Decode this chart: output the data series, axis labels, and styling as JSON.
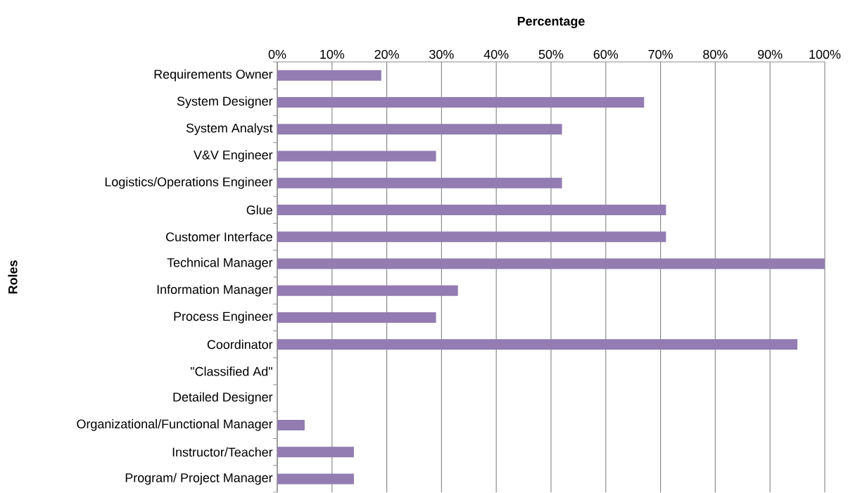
{
  "chart_data": {
    "type": "bar",
    "orientation": "horizontal",
    "xlabel": "Percentage",
    "ylabel": "Roles",
    "categories": [
      "Requirements Owner",
      "System Designer",
      "System Analyst",
      "V&V Engineer",
      "Logistics/Operations Engineer",
      "Glue",
      "Customer Interface",
      "Technical Manager",
      "Information Manager",
      "Process Engineer",
      "Coordinator",
      "\"Classified Ad\"",
      "Detailed Designer",
      "Organizational/Functional Manager",
      "Instructor/Teacher",
      "Program/ Project Manager"
    ],
    "values": [
      19,
      67,
      52,
      29,
      52,
      71,
      71,
      100,
      33,
      29,
      95,
      0,
      0,
      5,
      14,
      14
    ],
    "color": "#927cb1",
    "xlim": [
      0,
      100
    ],
    "xticks": [
      {
        "value": 0,
        "label": "0%"
      },
      {
        "value": 10,
        "label": "10%"
      },
      {
        "value": 20,
        "label": "20%"
      },
      {
        "value": 30,
        "label": "30%"
      },
      {
        "value": 40,
        "label": "40%"
      },
      {
        "value": 50,
        "label": "50%"
      },
      {
        "value": 60,
        "label": "60%"
      },
      {
        "value": 70,
        "label": "70%"
      },
      {
        "value": 80,
        "label": "80%"
      },
      {
        "value": 90,
        "label": "90%"
      },
      {
        "value": 100,
        "label": "100%"
      }
    ],
    "grid": "x"
  }
}
